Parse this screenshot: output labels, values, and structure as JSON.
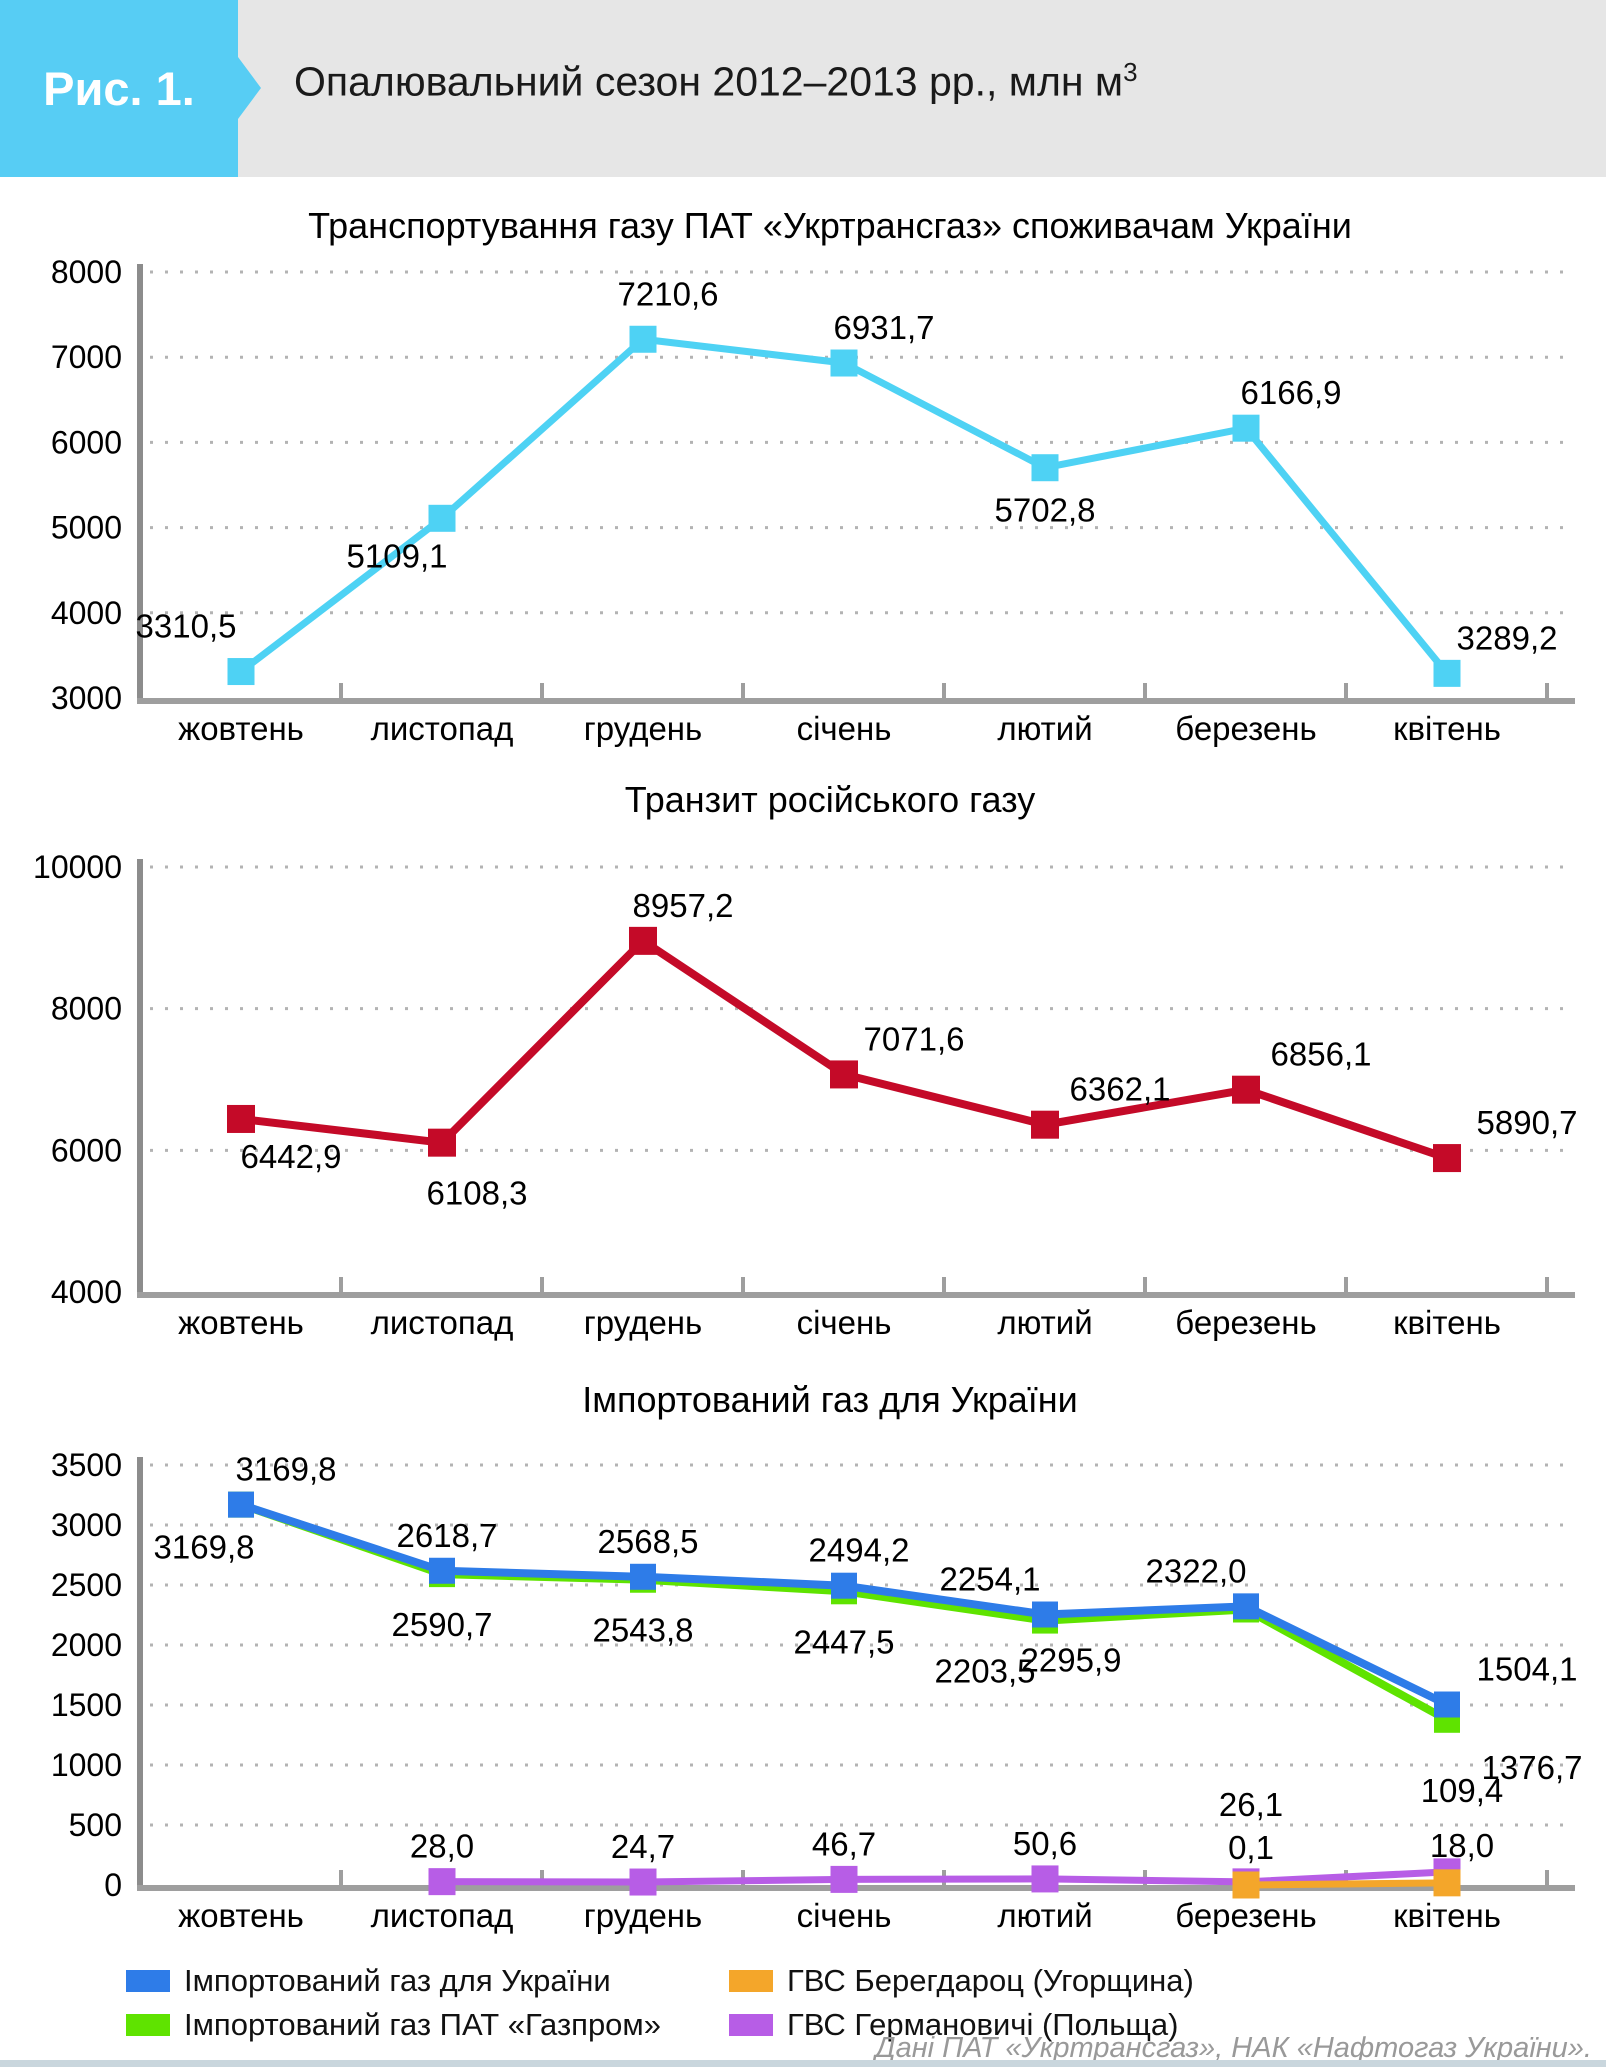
{
  "header": {
    "figure_label": "Рис. 1.",
    "title_main": "Опалювальний сезон 2012–2013 рр., млн м",
    "title_sup": "3"
  },
  "footer": {
    "source": "Дані ПАТ «Укртрансгаз», НАК «Нафтогаз України»."
  },
  "colors": {
    "cyan": "#4ed2f4",
    "red": "#c40a28",
    "blue": "#2e7ce8",
    "green": "#5fe300",
    "orange": "#f4a62a",
    "purple": "#b75de6",
    "badge_blue": "#57cdf4",
    "band_gray": "#e6e6e6",
    "grid": "#b3b3b3",
    "axis_y": "#8c8c8c",
    "axis_x": "#9e9e9e",
    "label": "#000000",
    "footer_gray": "#999999"
  },
  "chart_data": [
    {
      "type": "line",
      "title": "Транспортування газу ПАТ «Укртрансгаз» споживачам України",
      "categories": [
        "жовтень",
        "листопад",
        "грудень",
        "січень",
        "лютий",
        "березень",
        "квітень"
      ],
      "ylim": [
        3000,
        8000
      ],
      "ytick_step": 1000,
      "grid": "dotted",
      "legend_position": "none",
      "series": [
        {
          "name": "Транспортування газу споживачам України",
          "color": "cyan",
          "width": 7,
          "marker": 27,
          "values": [
            3310.5,
            5109.1,
            7210.6,
            6931.7,
            5702.8,
            6166.9,
            3289.2
          ],
          "label_side": [
            "above",
            "below",
            "above",
            "above",
            "below",
            "above",
            "above"
          ],
          "label_dx": [
            -55,
            -45,
            25,
            40,
            0,
            45,
            60
          ],
          "label_dy": [
            -10,
            -5,
            -10,
            0,
            0,
            0,
            0
          ]
        }
      ]
    },
    {
      "type": "line",
      "title": "Транзит російського газу",
      "categories": [
        "жовтень",
        "листопад",
        "грудень",
        "січень",
        "лютий",
        "березень",
        "квітень"
      ],
      "ylim": [
        4000,
        10000
      ],
      "ytick_step": 2000,
      "grid": "dotted",
      "legend_position": "none",
      "series": [
        {
          "name": "Транзит російського газу",
          "color": "red",
          "width": 8,
          "marker": 28,
          "values": [
            6442.9,
            6108.3,
            8957.2,
            7071.6,
            6362.1,
            6856.1,
            5890.7
          ],
          "label_side": [
            "below",
            "below",
            "above",
            "above",
            "above",
            "above",
            "above"
          ],
          "label_dx": [
            50,
            35,
            40,
            70,
            75,
            75,
            80
          ],
          "label_dy": [
            -5,
            8,
            0,
            0,
            0,
            0,
            0
          ]
        }
      ]
    },
    {
      "type": "line",
      "title": "Імпортований газ для України",
      "categories": [
        "жовтень",
        "листопад",
        "грудень",
        "січень",
        "лютий",
        "березень",
        "квітень"
      ],
      "ylim": [
        0,
        3500
      ],
      "ytick_step": 500,
      "grid": "dotted",
      "legend_position": "bottom",
      "series": [
        {
          "name": "Імпортований газ ПАТ «Газпром»",
          "color": "green",
          "width": 8,
          "marker": 26,
          "values": [
            3169.8,
            2590.7,
            2543.8,
            2447.5,
            2203.5,
            2295.9,
            1376.7
          ],
          "label_side": [
            "below",
            "below",
            "below",
            "below",
            "below",
            "below",
            "below"
          ],
          "label_dx": [
            -37,
            0,
            0,
            0,
            -60,
            -175,
            85
          ],
          "label_dy": [
            0,
            8,
            8,
            8,
            8,
            8,
            5
          ]
        },
        {
          "name": "Імпортований газ для України",
          "color": "blue",
          "width": 8,
          "marker": 26,
          "values": [
            3169.8,
            2618.7,
            2568.5,
            2494.2,
            2254.1,
            2322.0,
            1504.1
          ],
          "label_side": [
            "above",
            "above",
            "above",
            "above",
            "above",
            "above",
            "above"
          ],
          "label_dx": [
            45,
            5,
            5,
            15,
            -55,
            -50,
            80
          ],
          "label_dy": [
            0,
            0,
            0,
            0,
            0,
            0,
            0
          ]
        },
        {
          "name": "ГВС Германовичі (Польща)",
          "color": "purple",
          "width": 7,
          "marker": 27,
          "values": [
            null,
            28.0,
            24.7,
            46.7,
            50.6,
            26.1,
            109.4
          ],
          "label_side": [
            "above",
            "above",
            "above",
            "above",
            "above",
            "above",
            "above"
          ],
          "label_dx": [
            0,
            0,
            0,
            0,
            0,
            5,
            15
          ],
          "label_dy": [
            0,
            0,
            0,
            0,
            0,
            -42,
            -46
          ]
        },
        {
          "name": "ГВС Берегдароц (Угорщина)",
          "color": "orange",
          "width": 7,
          "marker": 27,
          "values": [
            null,
            null,
            null,
            null,
            null,
            0.1,
            18.0
          ],
          "label_side": [
            "above",
            "above",
            "above",
            "above",
            "above",
            "above",
            "above"
          ],
          "label_dx": [
            0,
            0,
            0,
            0,
            0,
            5,
            15
          ],
          "label_dy": [
            0,
            0,
            0,
            0,
            0,
            -2,
            -2
          ]
        }
      ]
    }
  ],
  "legend": {
    "items": [
      {
        "label": "Імпортований газ для України",
        "color": "blue"
      },
      {
        "label": "Імпортований газ ПАТ «Газпром»",
        "color": "green"
      },
      {
        "label": "ГВС Берегдароц (Угорщина)",
        "color": "orange"
      },
      {
        "label": "ГВС Германовичі (Польща)",
        "color": "purple"
      }
    ]
  }
}
